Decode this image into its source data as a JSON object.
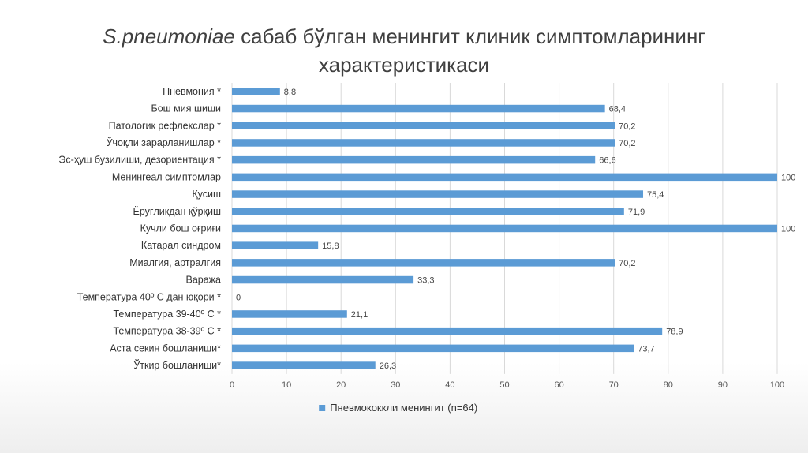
{
  "title": {
    "italic_part": "S.pneumoniae",
    "rest_line1": " сабаб бўлган менингит клиник симптомларининг",
    "line2": "характеристикаси"
  },
  "colors": {
    "bar": "#5b9bd5",
    "grid": "#d9d9d9",
    "text": "#404040"
  },
  "chart_data": {
    "type": "bar",
    "orientation": "horizontal",
    "categories": [
      "Пневмония *",
      "Бош мия шиши",
      "Патологик рефлекслар *",
      "Ўчоқли зарарланишлар *",
      "Эс-ҳуш бузилиши, дезориентация *",
      "Менингеал симптомлар",
      "Қусиш",
      "Ёруғликдан қўрқиш",
      "Кучли бош оғриғи",
      "Катарал синдром",
      "Миалгия, артралгия",
      "Ваража",
      "Температура 40º С дан юқори *",
      "Температура 39-40º С *",
      "Температура 38-39º С *",
      "Аста секин бошланиши*",
      "Ўткир бошланиши*"
    ],
    "series": [
      {
        "name": "Пневмококкли менингит (n=64)",
        "values": [
          8.8,
          68.4,
          70.2,
          70.2,
          66.6,
          100,
          75.4,
          71.9,
          100,
          15.8,
          70.2,
          33.3,
          0,
          21.1,
          78.9,
          73.7,
          26.3
        ],
        "labels": [
          "8,8",
          "68,4",
          "70,2",
          "70,2",
          "66,6",
          "100",
          "75,4",
          "71,9",
          "100",
          "15,8",
          "70,2",
          "33,3",
          "0",
          "21,1",
          "78,9",
          "73,7",
          "26,3"
        ]
      }
    ],
    "xlim": [
      0,
      100
    ],
    "xticks": [
      0,
      10,
      20,
      30,
      40,
      50,
      60,
      70,
      80,
      90,
      100
    ],
    "grid": true,
    "legend_position": "bottom"
  }
}
